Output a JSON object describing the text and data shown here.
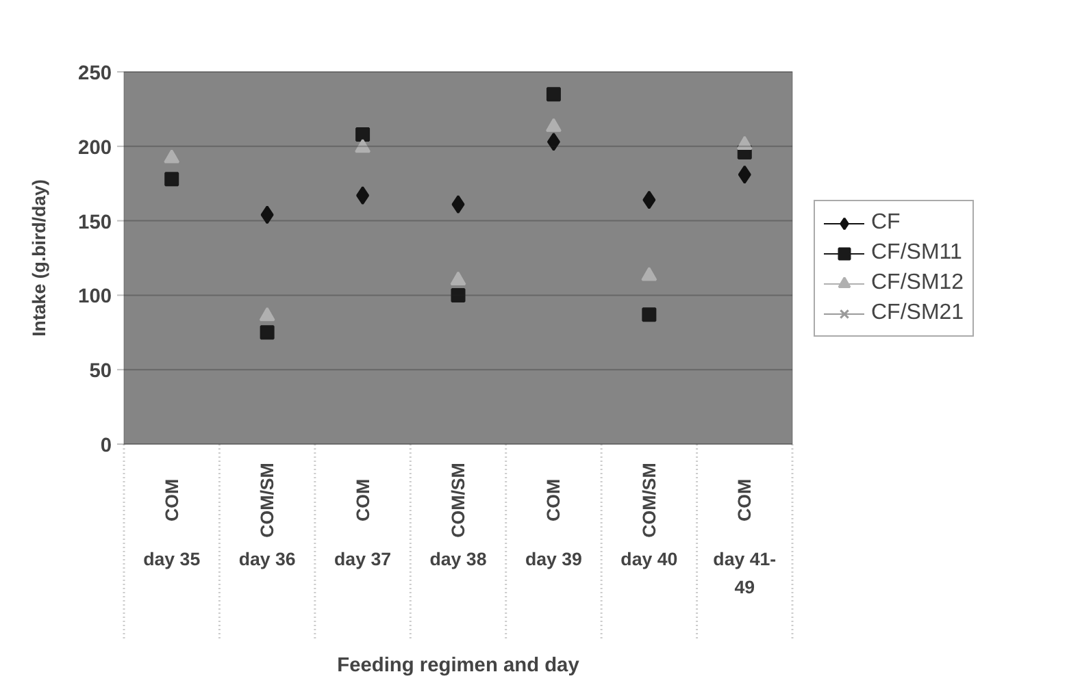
{
  "chart_data": {
    "type": "scatter",
    "xlabel": "Feeding regimen and day",
    "ylabel": "Intake (g.bird/day)",
    "categories": [
      "day 35",
      "day 36",
      "day 37",
      "day 38",
      "day 39",
      "day 40",
      "day 41-49"
    ],
    "annotations": [
      "COM",
      "COM/SM",
      "COM",
      "COM/SM",
      "COM",
      "COM/SM",
      "COM"
    ],
    "series": [
      {
        "name": "CF",
        "color": "#111111",
        "marker": "diamond",
        "values": [
          null,
          154,
          167,
          161,
          203,
          164,
          181
        ]
      },
      {
        "name": "CF/SM11",
        "color": "#1a1a1a",
        "marker": "square",
        "values": [
          178,
          75,
          208,
          100,
          235,
          87,
          196
        ]
      },
      {
        "name": "CF/SM12",
        "color": "#b0b0b0",
        "marker": "triangle",
        "values": [
          192,
          86,
          199,
          110,
          213,
          113,
          201
        ]
      },
      {
        "name": "CF/SM21",
        "color": "#9a9a9a",
        "marker": "cross",
        "values": [
          null,
          null,
          null,
          null,
          null,
          null,
          null
        ]
      }
    ],
    "ylim": [
      0,
      250
    ],
    "yticks": [
      0,
      50,
      100,
      150,
      200,
      250
    ],
    "grid": "y",
    "legend": "right"
  }
}
